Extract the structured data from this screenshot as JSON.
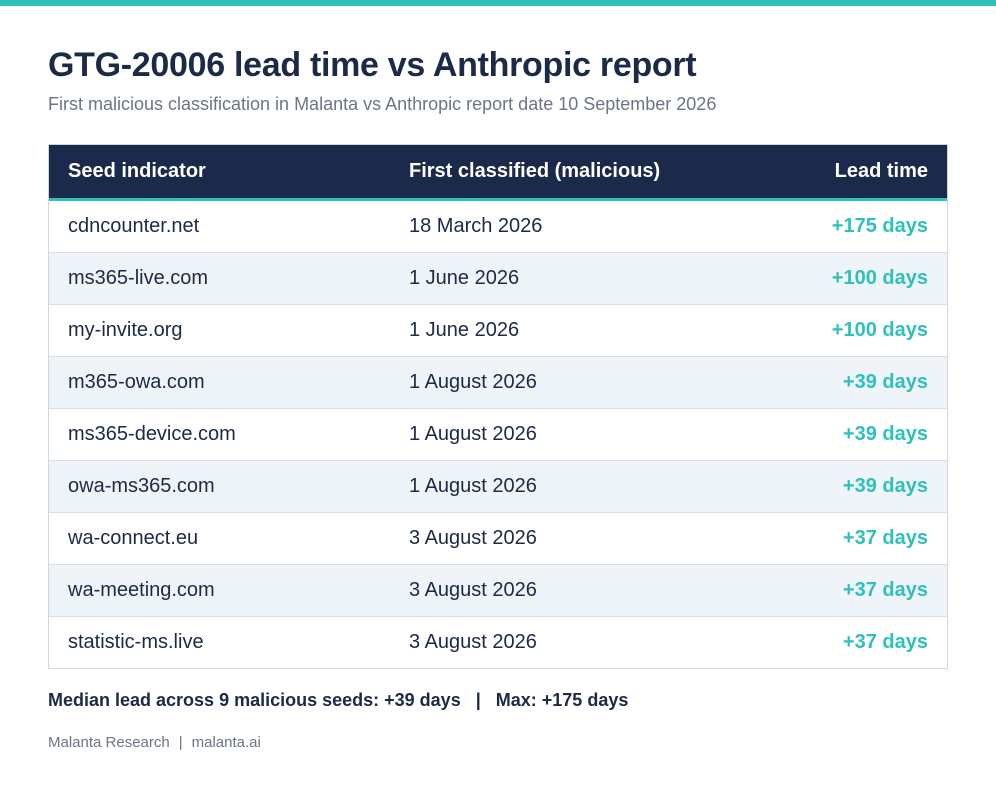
{
  "accent_color": "#2ec1bb",
  "header_color": "#1b2a4a",
  "title": "GTG-20006 lead time vs Anthropic report",
  "subtitle": "First malicious classification in Malanta vs Anthropic report date 10 September 2026",
  "table": {
    "columns": [
      "Seed indicator",
      "First classified (malicious)",
      "Lead time"
    ],
    "rows": [
      {
        "indicator": "cdncounter.net",
        "first_classified": "18 March 2026",
        "lead_time": "+175 days"
      },
      {
        "indicator": "ms365-live.com",
        "first_classified": "1 June 2026",
        "lead_time": "+100 days"
      },
      {
        "indicator": "my-invite.org",
        "first_classified": "1 June 2026",
        "lead_time": "+100 days"
      },
      {
        "indicator": "m365-owa.com",
        "first_classified": "1 August 2026",
        "lead_time": "+39 days"
      },
      {
        "indicator": "ms365-device.com",
        "first_classified": "1 August 2026",
        "lead_time": "+39 days"
      },
      {
        "indicator": "owa-ms365.com",
        "first_classified": "1 August 2026",
        "lead_time": "+39 days"
      },
      {
        "indicator": "wa-connect.eu",
        "first_classified": "3 August 2026",
        "lead_time": "+37 days"
      },
      {
        "indicator": "wa-meeting.com",
        "first_classified": "3 August 2026",
        "lead_time": "+37 days"
      },
      {
        "indicator": "statistic-ms.live",
        "first_classified": "3 August 2026",
        "lead_time": "+37 days"
      }
    ]
  },
  "summary": {
    "median": "Median lead across 9 malicious seeds: +39 days",
    "separator": "|",
    "max": "Max: +175 days"
  },
  "footer": {
    "source": "Malanta Research",
    "separator": "|",
    "site": "malanta.ai"
  }
}
